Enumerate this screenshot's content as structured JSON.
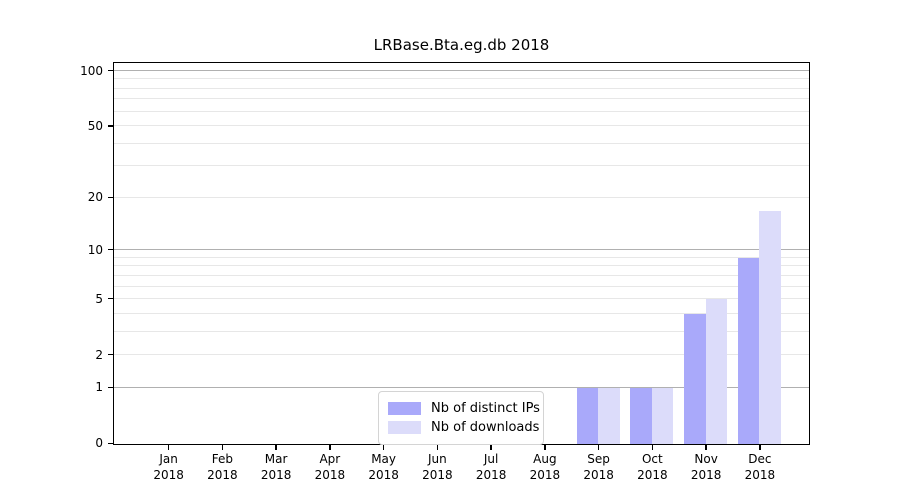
{
  "title": "LRBase.Bta.eg.db 2018",
  "chart_data": {
    "type": "bar",
    "title": "LRBase.Bta.eg.db 2018",
    "categories": [
      "Jan",
      "Feb",
      "Mar",
      "Apr",
      "May",
      "Jun",
      "Jul",
      "Aug",
      "Sep",
      "Oct",
      "Nov",
      "Dec"
    ],
    "x_tick_second_line": "2018",
    "series": [
      {
        "name": "Nb of distinct IPs",
        "color": "#a9a9fa",
        "values": [
          0,
          0,
          0,
          0,
          0,
          0,
          0,
          0,
          1,
          1,
          4,
          9
        ]
      },
      {
        "name": "Nb of downloads",
        "color": "#dcdcfa",
        "values": [
          0,
          0,
          0,
          0,
          0,
          0,
          0,
          0,
          1,
          1,
          5,
          17
        ]
      }
    ],
    "xlabel": "",
    "ylabel": "",
    "y_axis": {
      "scale": "log1p",
      "tick_values": [
        0,
        1,
        2,
        5,
        10,
        20,
        50,
        100
      ],
      "tick_labels": [
        "0",
        "1",
        "2",
        "5",
        "10",
        "20",
        "50",
        "100"
      ],
      "major_gridlines": [
        1,
        10,
        100
      ],
      "minor_gridlines": [
        2,
        3,
        4,
        5,
        6,
        7,
        8,
        9,
        20,
        30,
        40,
        50,
        60,
        70,
        80,
        90
      ],
      "ylim": [
        0,
        111
      ]
    },
    "legend": {
      "position": "lower center",
      "entries": [
        "Nb of distinct IPs",
        "Nb of downloads"
      ]
    },
    "grid": true,
    "colors": {
      "bar_distinct_ips": "#a9a9fa",
      "bar_downloads": "#dcdcfa",
      "major_grid": "#b0b0b0",
      "minor_grid": "#e7e7e7",
      "axis": "#000000"
    }
  }
}
